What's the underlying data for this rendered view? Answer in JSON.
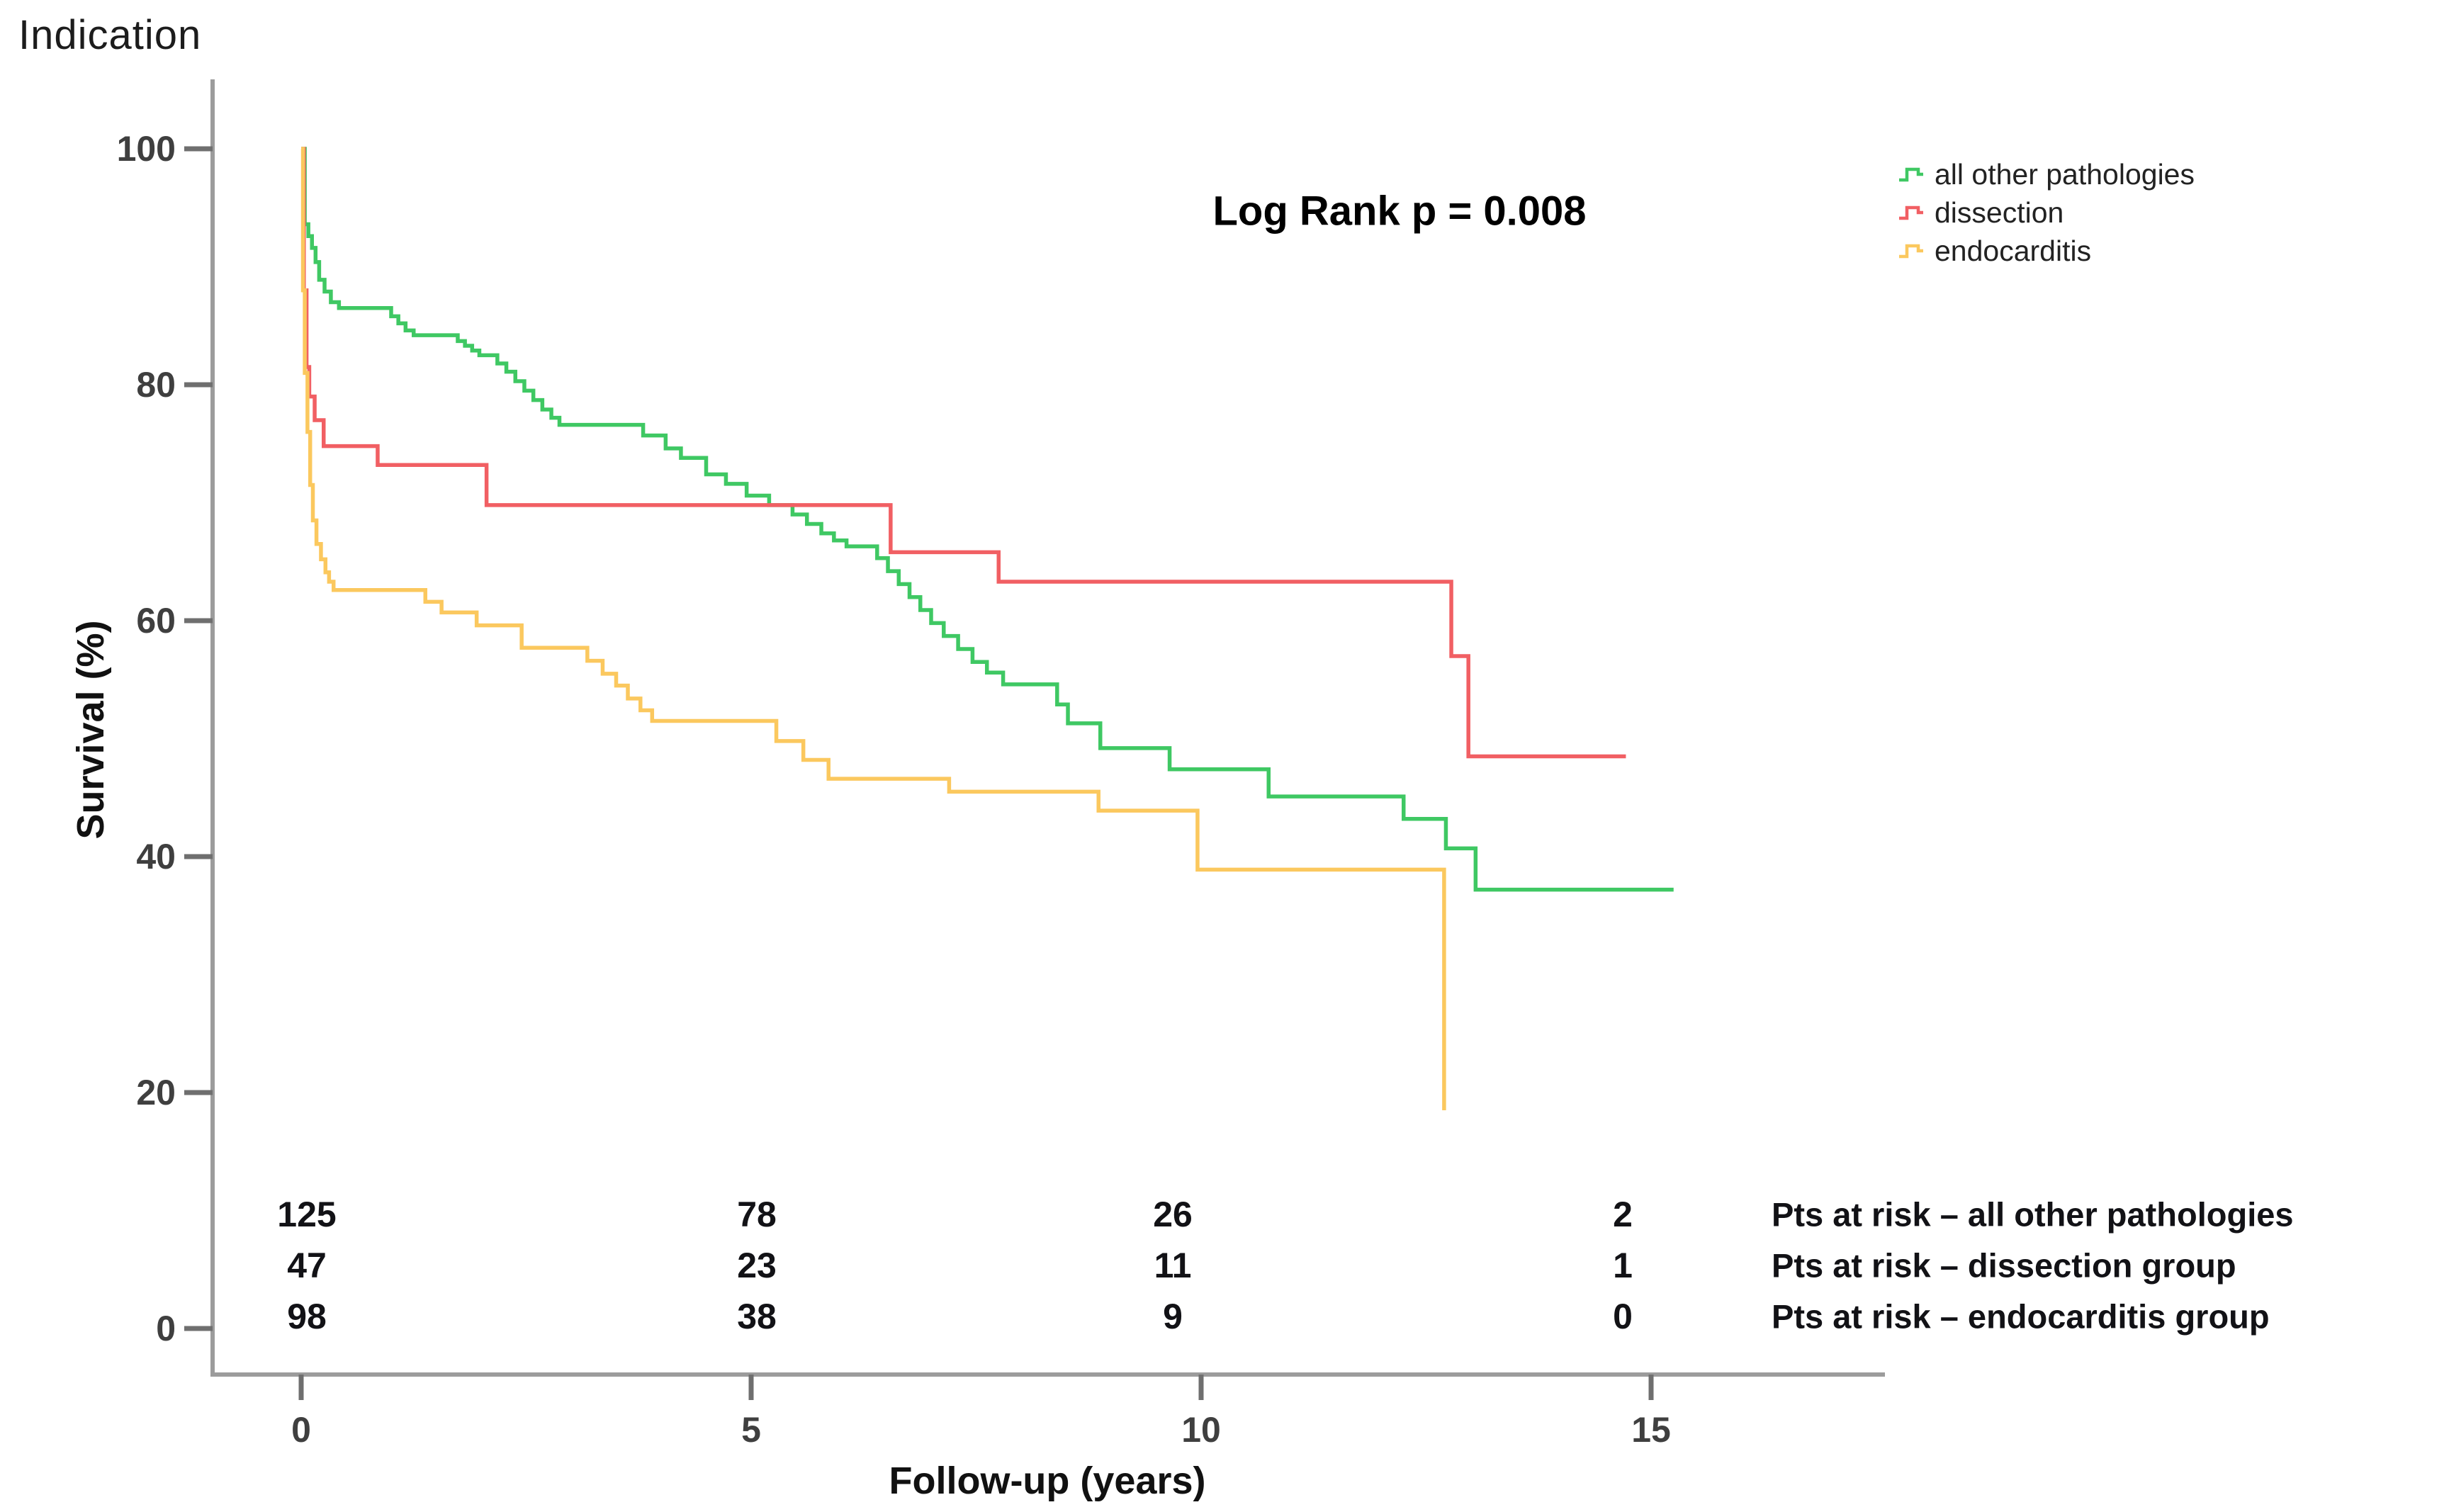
{
  "page_title": "Indication",
  "annotation": "Log Rank p = 0.008",
  "legend": {
    "items": [
      {
        "label": "all other pathologies",
        "color": "#3fc863"
      },
      {
        "label": "dissection",
        "color": "#f15f63"
      },
      {
        "label": "endocarditis",
        "color": "#fbc85e"
      }
    ]
  },
  "colors": {
    "axis": "#9c9c9c",
    "tick_label": "#3f3f3f",
    "risk_number": "#121216",
    "background": "#ffffff"
  },
  "chart_data": {
    "type": "line",
    "subtype": "kaplan-meier-step",
    "title": "Indication",
    "xlabel": "Follow-up (years)",
    "ylabel": "Survival (%)",
    "xlim": [
      0,
      15
    ],
    "ylim": [
      0,
      100
    ],
    "x_ticks": [
      0,
      5,
      10,
      15
    ],
    "y_ticks": [
      0,
      20,
      40,
      60,
      80,
      100
    ],
    "grid": false,
    "legend_position": "top-right",
    "annotation": "Log Rank p = 0.008",
    "series": [
      {
        "name": "all other pathologies",
        "color": "#3fc863",
        "points": [
          [
            0,
            100
          ],
          [
            0.04,
            93.6
          ],
          [
            0.08,
            92.6
          ],
          [
            0.12,
            91.6
          ],
          [
            0.16,
            90.4
          ],
          [
            0.2,
            88.9
          ],
          [
            0.26,
            87.9
          ],
          [
            0.33,
            87.0
          ],
          [
            0.42,
            86.5
          ],
          [
            1.0,
            85.8
          ],
          [
            1.08,
            85.2
          ],
          [
            1.16,
            84.6
          ],
          [
            1.25,
            84.2
          ],
          [
            1.74,
            83.7
          ],
          [
            1.82,
            83.3
          ],
          [
            1.9,
            82.9
          ],
          [
            1.98,
            82.5
          ],
          [
            2.18,
            81.8
          ],
          [
            2.28,
            81.1
          ],
          [
            2.38,
            80.3
          ],
          [
            2.48,
            79.5
          ],
          [
            2.58,
            78.7
          ],
          [
            2.68,
            77.9
          ],
          [
            2.78,
            77.2
          ],
          [
            2.87,
            76.6
          ],
          [
            3.8,
            75.7
          ],
          [
            4.05,
            74.6
          ],
          [
            4.22,
            73.8
          ],
          [
            4.5,
            72.4
          ],
          [
            4.72,
            71.6
          ],
          [
            4.95,
            70.6
          ],
          [
            5.2,
            69.8
          ],
          [
            5.46,
            69.0
          ],
          [
            5.62,
            68.2
          ],
          [
            5.78,
            67.4
          ],
          [
            5.92,
            66.8
          ],
          [
            6.06,
            66.3
          ],
          [
            6.4,
            65.3
          ],
          [
            6.52,
            64.2
          ],
          [
            6.64,
            63.1
          ],
          [
            6.76,
            62.0
          ],
          [
            6.88,
            60.9
          ],
          [
            7.0,
            59.8
          ],
          [
            7.14,
            58.7
          ],
          [
            7.3,
            57.6
          ],
          [
            7.46,
            56.5
          ],
          [
            7.62,
            55.6
          ],
          [
            7.8,
            54.6
          ],
          [
            8.4,
            52.9
          ],
          [
            8.52,
            51.3
          ],
          [
            8.88,
            49.2
          ],
          [
            9.65,
            47.4
          ],
          [
            10.75,
            45.1
          ],
          [
            12.25,
            43.2
          ],
          [
            12.72,
            40.7
          ],
          [
            13.05,
            37.2
          ],
          [
            15.25,
            37.2
          ]
        ]
      },
      {
        "name": "dissection",
        "color": "#f15f63",
        "points": [
          [
            0,
            100
          ],
          [
            0.03,
            88.0
          ],
          [
            0.06,
            81.5
          ],
          [
            0.09,
            79.0
          ],
          [
            0.15,
            77.0
          ],
          [
            0.25,
            74.8
          ],
          [
            0.85,
            73.2
          ],
          [
            2.06,
            69.8
          ],
          [
            6.55,
            65.8
          ],
          [
            7.75,
            63.3
          ],
          [
            12.78,
            57.0
          ],
          [
            12.97,
            48.5
          ],
          [
            14.72,
            48.5
          ]
        ]
      },
      {
        "name": "endocarditis",
        "color": "#fbc85e",
        "points": [
          [
            0,
            100
          ],
          [
            0.02,
            88.0
          ],
          [
            0.04,
            81.0
          ],
          [
            0.07,
            76.0
          ],
          [
            0.1,
            71.5
          ],
          [
            0.13,
            68.5
          ],
          [
            0.17,
            66.5
          ],
          [
            0.22,
            65.2
          ],
          [
            0.27,
            64.1
          ],
          [
            0.31,
            63.3
          ],
          [
            0.36,
            62.6
          ],
          [
            1.38,
            61.6
          ],
          [
            1.56,
            60.7
          ],
          [
            1.95,
            59.6
          ],
          [
            2.45,
            57.7
          ],
          [
            3.18,
            56.6
          ],
          [
            3.35,
            55.5
          ],
          [
            3.5,
            54.5
          ],
          [
            3.63,
            53.4
          ],
          [
            3.77,
            52.4
          ],
          [
            3.9,
            51.5
          ],
          [
            5.28,
            49.8
          ],
          [
            5.58,
            48.2
          ],
          [
            5.86,
            46.6
          ],
          [
            7.2,
            45.5
          ],
          [
            8.86,
            43.9
          ],
          [
            9.96,
            38.9
          ],
          [
            12.7,
            18.5
          ]
        ]
      }
    ],
    "pts_at_risk": {
      "columns": [
        0,
        5,
        10,
        15
      ],
      "rows": [
        {
          "label": "Pts at risk – all other pathologies",
          "values": [
            125,
            78,
            26,
            2
          ]
        },
        {
          "label": "Pts at risk – dissection group",
          "values": [
            47,
            23,
            11,
            1
          ]
        },
        {
          "label": "Pts at risk – endocarditis group",
          "values": [
            98,
            38,
            9,
            0
          ]
        }
      ]
    }
  }
}
